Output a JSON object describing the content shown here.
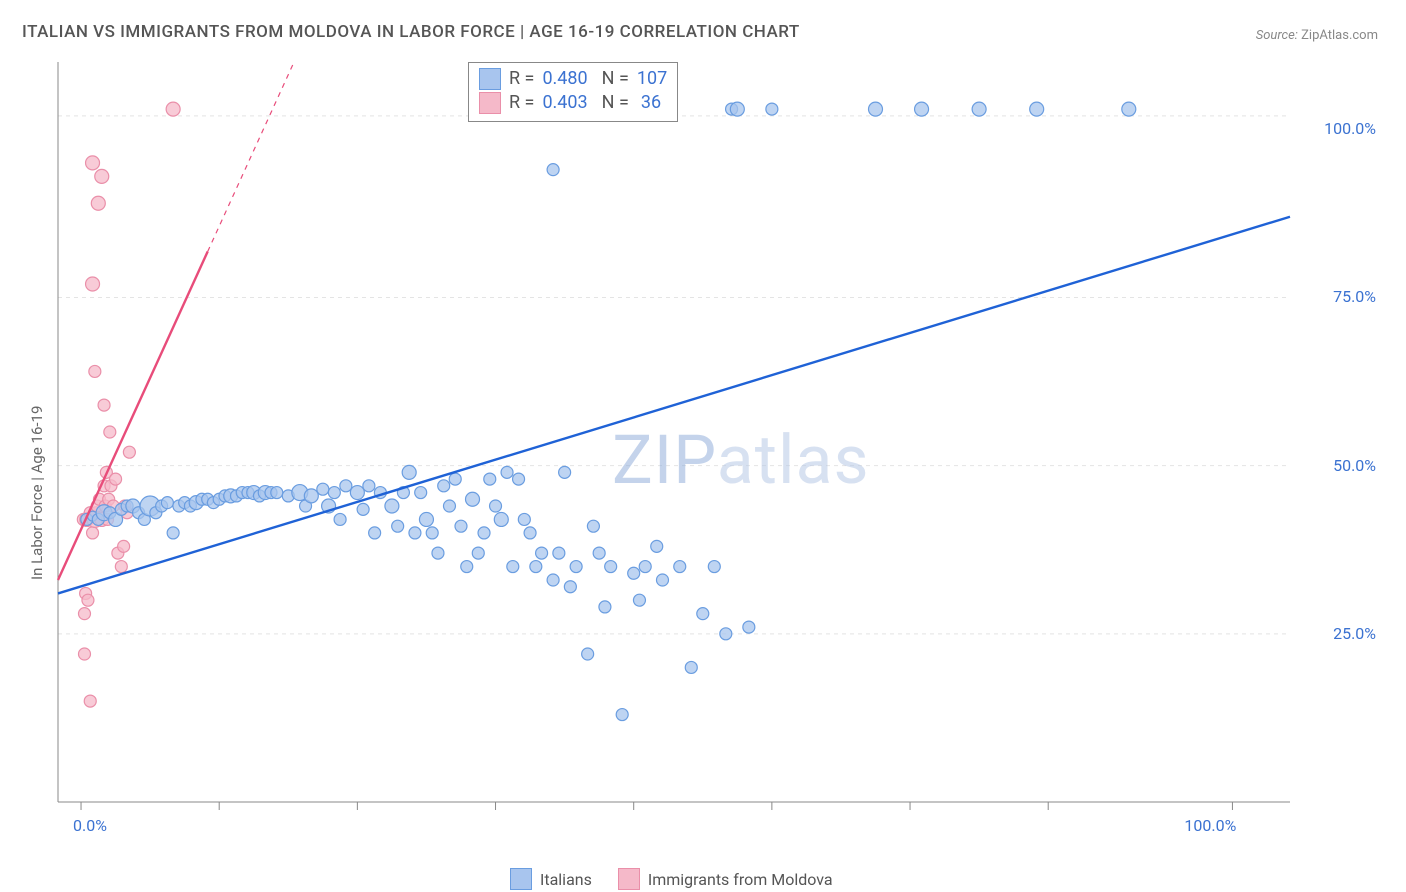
{
  "title": "ITALIAN VS IMMIGRANTS FROM MOLDOVA IN LABOR FORCE | AGE 16-19 CORRELATION CHART",
  "source": {
    "label": "Source:",
    "name": "ZipAtlas.com"
  },
  "ylabel": "In Labor Force | Age 16-19",
  "watermark": {
    "part1": "ZIP",
    "part2": "atlas"
  },
  "chart": {
    "type": "scatter",
    "plot_bg": "#ffffff",
    "axis_color": "#888888",
    "grid_color": "#e4e4e4",
    "xlim": [
      -2,
      105
    ],
    "ylim": [
      0,
      110
    ],
    "xticks": [
      0,
      12,
      24,
      36,
      48,
      60,
      72,
      84,
      100
    ],
    "yticks_grid": [
      25,
      50,
      75,
      102
    ],
    "ytick_labels": [
      {
        "v": 25,
        "t": "25.0%"
      },
      {
        "v": 50,
        "t": "50.0%"
      },
      {
        "v": 75,
        "t": "75.0%"
      },
      {
        "v": 100,
        "t": "100.0%"
      }
    ],
    "xtick_labels": [
      {
        "v": 0,
        "t": "0.0%"
      },
      {
        "v": 100,
        "t": "100.0%"
      }
    ],
    "series": [
      {
        "name": "Italians",
        "color_fill": "#a8c5ee",
        "color_stroke": "#6a9de0",
        "marker_r_default": 7,
        "trend": {
          "x1": -2,
          "y1": 31,
          "x2": 105,
          "y2": 87,
          "color": "#1f62d6",
          "width": 2.4,
          "dash_from_x": 105
        },
        "points": [
          [
            0.5,
            42,
            6
          ],
          [
            1,
            42.5,
            5
          ],
          [
            1.5,
            42,
            6
          ],
          [
            2,
            43,
            8
          ],
          [
            2.5,
            43,
            6
          ],
          [
            3,
            42,
            7
          ],
          [
            3.5,
            43.5,
            6
          ],
          [
            4,
            44,
            6
          ],
          [
            4.5,
            44,
            7
          ],
          [
            5,
            43,
            6
          ],
          [
            5.5,
            42,
            6
          ],
          [
            6,
            44,
            10
          ],
          [
            6.5,
            43,
            6
          ],
          [
            7,
            44,
            6
          ],
          [
            7.5,
            44.5,
            6
          ],
          [
            8,
            40,
            6
          ],
          [
            8.5,
            44,
            6
          ],
          [
            9,
            44.5,
            6
          ],
          [
            9.5,
            44,
            6
          ],
          [
            10,
            44.5,
            7
          ],
          [
            10.5,
            45,
            6
          ],
          [
            11,
            45,
            6
          ],
          [
            11.5,
            44.5,
            6
          ],
          [
            12,
            45,
            6
          ],
          [
            12.5,
            45.5,
            6
          ],
          [
            13,
            45.5,
            7
          ],
          [
            13.5,
            45.5,
            6
          ],
          [
            14,
            46,
            6
          ],
          [
            14.5,
            46,
            6
          ],
          [
            15,
            46,
            7
          ],
          [
            15.5,
            45.5,
            6
          ],
          [
            16,
            46,
            7
          ],
          [
            16.5,
            46,
            6
          ],
          [
            17,
            46,
            6
          ],
          [
            18,
            45.5,
            6
          ],
          [
            19,
            46,
            8
          ],
          [
            19.5,
            44,
            6
          ],
          [
            20,
            45.5,
            7
          ],
          [
            21,
            46.5,
            6
          ],
          [
            21.5,
            44,
            7
          ],
          [
            22,
            46,
            6
          ],
          [
            22.5,
            42,
            6
          ],
          [
            23,
            47,
            6
          ],
          [
            24,
            46,
            7
          ],
          [
            24.5,
            43.5,
            6
          ],
          [
            25,
            47,
            6
          ],
          [
            25.5,
            40,
            6
          ],
          [
            26,
            46,
            6
          ],
          [
            27,
            44,
            7
          ],
          [
            27.5,
            41,
            6
          ],
          [
            28,
            46,
            6
          ],
          [
            28.5,
            49,
            7
          ],
          [
            29,
            40,
            6
          ],
          [
            29.5,
            46,
            6
          ],
          [
            30,
            42,
            7
          ],
          [
            30.5,
            40,
            6
          ],
          [
            31,
            37,
            6
          ],
          [
            31.5,
            47,
            6
          ],
          [
            32,
            44,
            6
          ],
          [
            32.5,
            48,
            6
          ],
          [
            33,
            41,
            6
          ],
          [
            33.5,
            35,
            6
          ],
          [
            34,
            45,
            7
          ],
          [
            34.5,
            37,
            6
          ],
          [
            35,
            40,
            6
          ],
          [
            35.5,
            48,
            6
          ],
          [
            36,
            44,
            6
          ],
          [
            36.5,
            42,
            7
          ],
          [
            37,
            49,
            6
          ],
          [
            37.5,
            35,
            6
          ],
          [
            38,
            48,
            6
          ],
          [
            38.5,
            42,
            6
          ],
          [
            39,
            40,
            6
          ],
          [
            39.5,
            35,
            6
          ],
          [
            40,
            37,
            6
          ],
          [
            41,
            33,
            6
          ],
          [
            41.5,
            37,
            6
          ],
          [
            42,
            49,
            6
          ],
          [
            42.5,
            32,
            6
          ],
          [
            43,
            35,
            6
          ],
          [
            44,
            22,
            6
          ],
          [
            44.5,
            41,
            6
          ],
          [
            45,
            37,
            6
          ],
          [
            45.5,
            29,
            6
          ],
          [
            46,
            35,
            6
          ],
          [
            46.5,
            103,
            7
          ],
          [
            47,
            13,
            6
          ],
          [
            48,
            34,
            6
          ],
          [
            48.5,
            30,
            6
          ],
          [
            49,
            35,
            6
          ],
          [
            50,
            38,
            6
          ],
          [
            50.5,
            33,
            6
          ],
          [
            51,
            103,
            7
          ],
          [
            52,
            35,
            6
          ],
          [
            53,
            20,
            6
          ],
          [
            54,
            28,
            6
          ],
          [
            55,
            35,
            6
          ],
          [
            56,
            25,
            6
          ],
          [
            56.5,
            103,
            6
          ],
          [
            57,
            103,
            7
          ],
          [
            58,
            26,
            6
          ],
          [
            60,
            103,
            6
          ],
          [
            69,
            103,
            7
          ],
          [
            73,
            103,
            7
          ],
          [
            78,
            103,
            7
          ],
          [
            83,
            103,
            7
          ],
          [
            91,
            103,
            7
          ],
          [
            41,
            94,
            6
          ]
        ]
      },
      {
        "name": "Immigrants from Moldova",
        "color_fill": "#f5b9c9",
        "color_stroke": "#ea8fa9",
        "marker_r_default": 7,
        "trend": {
          "x1": -2,
          "y1": 33,
          "x2": 18.5,
          "y2": 110,
          "color": "#e84c7a",
          "width": 2.4,
          "dash_from_x": 11
        },
        "points": [
          [
            0.2,
            42,
            6
          ],
          [
            0.5,
            42,
            7
          ],
          [
            0.8,
            43,
            6
          ],
          [
            1,
            40,
            6
          ],
          [
            1.2,
            42,
            8
          ],
          [
            1.3,
            43,
            6
          ],
          [
            1.4,
            44,
            6
          ],
          [
            1.6,
            45,
            6
          ],
          [
            1.8,
            42,
            7
          ],
          [
            2,
            47,
            6
          ],
          [
            2.1,
            44,
            6
          ],
          [
            2.2,
            49,
            6
          ],
          [
            2.3,
            42,
            6
          ],
          [
            2.4,
            45,
            6
          ],
          [
            2.6,
            47,
            6
          ],
          [
            2.8,
            44,
            6
          ],
          [
            3,
            48,
            6
          ],
          [
            3.2,
            37,
            6
          ],
          [
            3.5,
            35,
            6
          ],
          [
            3.7,
            38,
            6
          ],
          [
            3.8,
            44,
            6
          ],
          [
            4,
            43,
            6
          ],
          [
            4.2,
            52,
            6
          ],
          [
            0.3,
            28,
            6
          ],
          [
            0.4,
            31,
            6
          ],
          [
            0.6,
            30,
            6
          ],
          [
            1,
            77,
            7
          ],
          [
            1.2,
            64,
            6
          ],
          [
            2.5,
            55,
            6
          ],
          [
            2,
            59,
            6
          ],
          [
            1.5,
            89,
            7
          ],
          [
            1.8,
            93,
            7
          ],
          [
            1,
            95,
            7
          ],
          [
            0.3,
            22,
            6
          ],
          [
            0.8,
            15,
            6
          ],
          [
            8,
            103,
            7
          ]
        ]
      }
    ],
    "legend_top": [
      {
        "swatch_fill": "#a8c5ee",
        "swatch_stroke": "#6a9de0",
        "r": "0.480",
        "n": "107"
      },
      {
        "swatch_fill": "#f5b9c9",
        "swatch_stroke": "#ea8fa9",
        "r": "0.403",
        "n": "36"
      }
    ],
    "legend_bottom": [
      {
        "swatch_fill": "#a8c5ee",
        "swatch_stroke": "#6a9de0",
        "label": "Italians"
      },
      {
        "swatch_fill": "#f5b9c9",
        "swatch_stroke": "#ea8fa9",
        "label": "Immigrants from Moldova"
      }
    ]
  }
}
